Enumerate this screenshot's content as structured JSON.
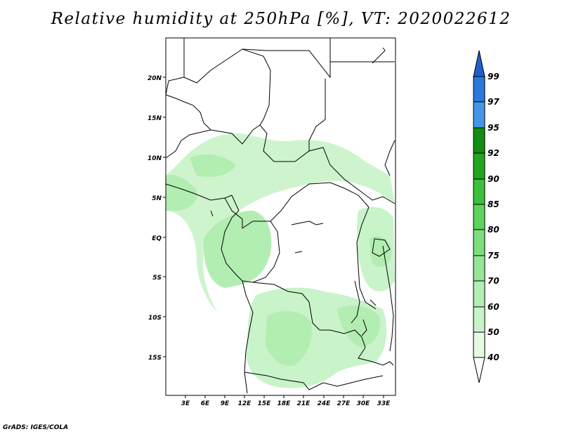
{
  "title": "Relative humidity at 250hPa [%], VT: 2020022612",
  "credit": "GrADS: IGES/COLA",
  "map": {
    "lat_labels": [
      "20N",
      "15N",
      "10N",
      "5N",
      "EQ",
      "5S",
      "10S",
      "15S"
    ],
    "lon_labels": [
      "3E",
      "6E",
      "9E",
      "12E",
      "15E",
      "18E",
      "21E",
      "24E",
      "27E",
      "30E",
      "33E"
    ]
  },
  "colorbar": {
    "levels": [
      "40",
      "50",
      "60",
      "70",
      "75",
      "80",
      "85",
      "90",
      "92",
      "95",
      "97",
      "99"
    ],
    "colors": [
      "#ffffff",
      "#e6fae6",
      "#c9f3c9",
      "#b2edb2",
      "#97e597",
      "#7cde7c",
      "#5dd35d",
      "#3dc13d",
      "#22a622",
      "#128c12",
      "#4696e6",
      "#2a78dc",
      "#1e5fcc"
    ]
  }
}
